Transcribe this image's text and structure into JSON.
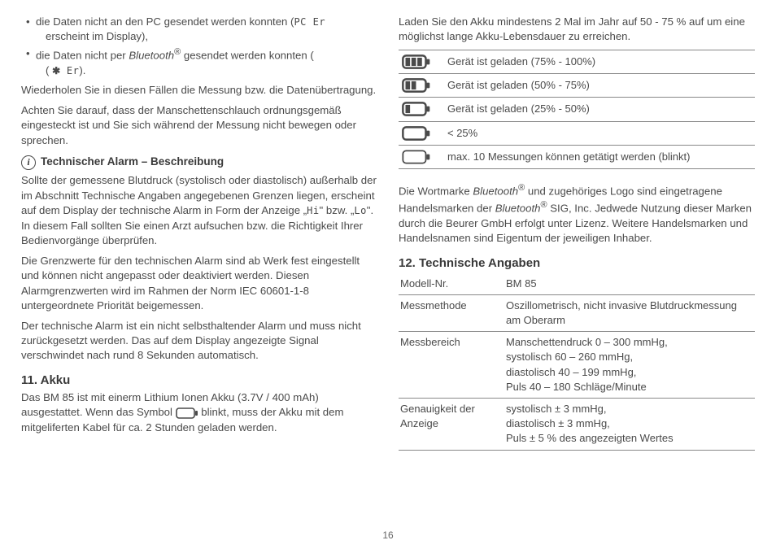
{
  "page_number": "16",
  "left": {
    "bullets": [
      {
        "pre": "die Daten nicht an den PC gesendet werden konnten (",
        "code": "PC Er",
        "post": " erscheint im Display),"
      },
      {
        "pre": "die Daten nicht per ",
        "italic": "Bluetooth",
        "sup": "®",
        "mid": " gesendet werden konnten (",
        "bticon": "✱",
        "code": " Er",
        "post": ")."
      }
    ],
    "para1": "Wiederholen Sie in diesen Fällen die Messung bzw. die Datenübertragung.",
    "para2": "Achten Sie darauf, dass der Manschettenschlauch ordnungsgemäß eingesteckt ist und Sie sich während der Messung nicht bewegen oder sprechen.",
    "alarm_heading": "Technischer Alarm – Beschreibung",
    "alarm_p1_a": "Sollte der gemessene Blutdruck (systolisch oder diastolisch) außerhalb der im Abschnitt Technische Angaben angegebenen Grenzen liegen, erscheint auf dem Display der technische Alarm in Form der Anzeige „",
    "alarm_hi": "Hi",
    "alarm_p1_b": "\" bzw. „",
    "alarm_lo": "Lo",
    "alarm_p1_c": "\". In diesem Fall sollten Sie einen Arzt aufsuchen bzw. die Richtigkeit Ihrer Bedienvorgänge überprüfen.",
    "alarm_p2": "Die Grenzwerte für den technischen Alarm sind ab Werk fest eingestellt und können nicht angepasst oder deaktiviert werden. Diesen Alarmgrenzwerten wird im Rahmen der Norm IEC 60601-1-8 untergeordnete Priorität beigemessen.",
    "alarm_p3": "Der technische Alarm ist ein nicht selbsthaltender Alarm und muss nicht zurückgesetzt werden. Das auf dem Display angezeigte Signal verschwindet nach rund 8 Sekunden automatisch.",
    "akku_heading": "11. Akku",
    "akku_p_a": "Das BM 85 ist mit einerm Lithium Ionen Akku (3.7V / 400 mAh) ausgestattet. Wenn das Symbol ",
    "akku_p_b": " blinkt, muss der Akku mit dem mitgeliferten Kabel für ca. 2 Stunden geladen werden."
  },
  "right": {
    "intro": "Laden Sie den Akku mindestens 2 Mal im Jahr auf 50 - 75 % auf um eine möglichst lange Akku-Lebensdauer zu erreichen.",
    "battery_rows": [
      {
        "bars": 3,
        "filled": 3,
        "text": "Gerät ist geladen (75% - 100%)"
      },
      {
        "bars": 3,
        "filled": 2,
        "text": "Gerät ist geladen (50% - 75%)"
      },
      {
        "bars": 3,
        "filled": 1,
        "text": "Gerät ist geladen (25% - 50%)"
      },
      {
        "bars": 3,
        "filled": 0,
        "text": "< 25%"
      },
      {
        "bars": 0,
        "filled": 0,
        "text": "max. 10 Messungen können getätigt werden (blinkt)"
      }
    ],
    "trademark_a": "Die Wortmarke ",
    "bt1": "Bluetooth",
    "trademark_b": " und zugehöriges Logo sind eingetragene Handelsmarken der ",
    "bt2": "Bluetooth",
    "trademark_c": " SIG, Inc. Jedwede Nutzung dieser Marken durch die Beurer GmbH erfolgt unter Lizenz. Weitere Handelsmarken und Handelsnamen sind Eigentum der jeweiligen Inhaber.",
    "tech_heading": "12. Technische Angaben",
    "spec_rows": [
      {
        "label": "Modell-Nr.",
        "value": "BM 85"
      },
      {
        "label": "Messmethode",
        "value": "Oszillometrisch, nicht invasive Blutdruckmessung am Oberarm"
      },
      {
        "label": "Messbereich",
        "value": "Manschettendruck 0 – 300 mmHg,\nsystolisch 60 – 260 mmHg,\ndiastolisch 40 – 199 mmHg,\nPuls 40 – 180 Schläge/Minute"
      },
      {
        "label": "Genauigkeit der Anzeige",
        "value": "systolisch ± 3 mmHg,\ndiastolisch ± 3 mmHg,\nPuls ± 5 % des angezeigten Wertes"
      }
    ]
  },
  "colors": {
    "text": "#4a4a4a",
    "rule": "#888888",
    "bg": "#ffffff"
  }
}
